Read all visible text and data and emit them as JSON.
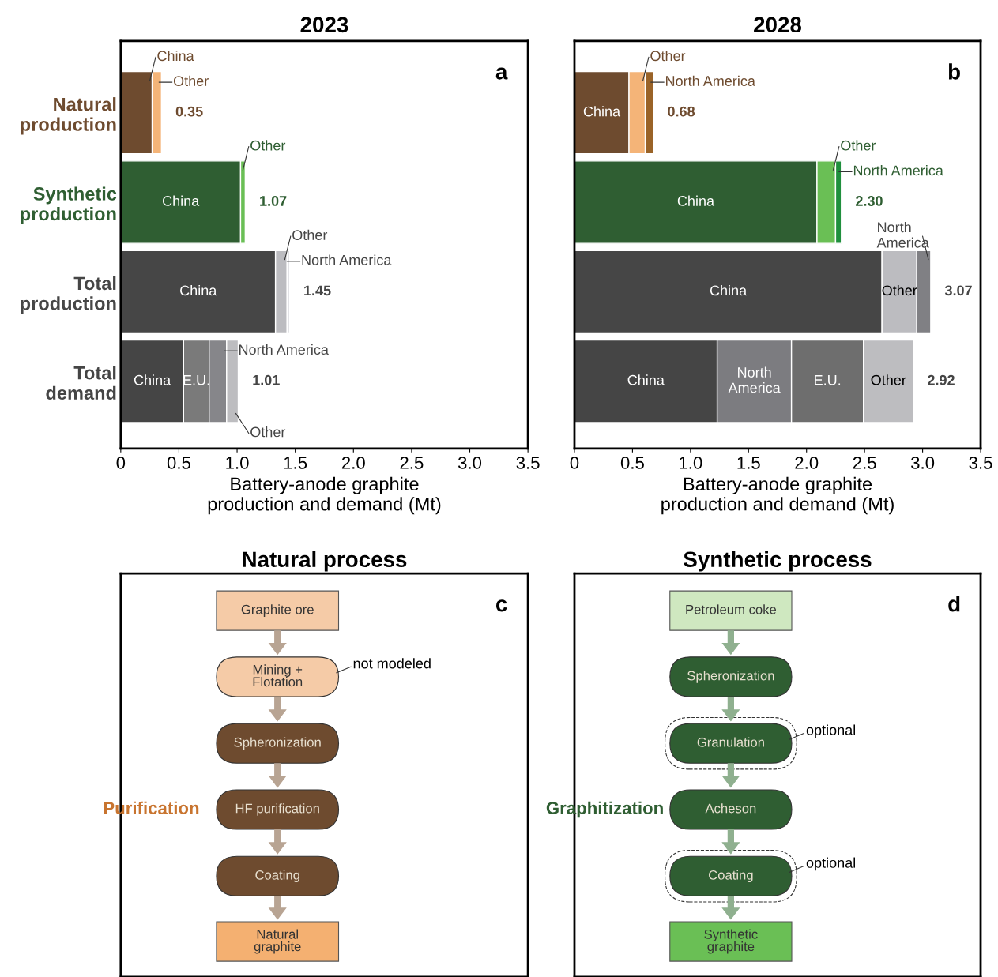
{
  "chart_data": [
    {
      "type": "bar",
      "orientation": "horizontal",
      "stacked": true,
      "title": "2023",
      "xlabel": "Battery-anode graphite\nproduction and demand (Mt)",
      "categories": [
        "Natural\nproduction",
        "Synthetic\nproduction",
        "Total\nproduction",
        "Total\ndemand"
      ],
      "series": [
        {
          "values": [
            0.27,
            1.03,
            1.33,
            0.54
          ],
          "colors": [
            "#6e4b2f",
            "#2f5e32",
            "#464646",
            "#454545"
          ]
        },
        {
          "values": [
            0.08,
            0.04,
            0.1,
            0.22
          ],
          "colors": [
            "#f4b478",
            "#6abf55",
            "#bcbcc0",
            "#7a7a7a"
          ]
        },
        {
          "values": [
            null,
            null,
            0.02,
            0.15
          ],
          "colors": [
            null,
            null,
            "#d0d0d4",
            "#86868a"
          ]
        },
        {
          "values": [
            null,
            null,
            null,
            0.1
          ],
          "colors": [
            null,
            null,
            null,
            "#bdbdc0"
          ]
        }
      ],
      "totals": [
        "0.35",
        "1.07",
        "1.45",
        "1.01"
      ],
      "xlim": [
        0,
        3.5
      ],
      "xticks": [
        0,
        0.5,
        {
          "value": 1,
          "label": "1.0"
        },
        1.5,
        {
          "value": 2,
          "label": "2.0"
        },
        2.5,
        {
          "value": 3,
          "label": "3.0"
        },
        3.5
      ],
      "grid": false,
      "legend": false,
      "annotations": [
        "a",
        "China",
        "Other",
        "China",
        "Other",
        "China",
        "Other",
        "North America",
        "China",
        "E.U.",
        "North America",
        "Other"
      ]
    },
    {
      "type": "bar",
      "orientation": "horizontal",
      "stacked": true,
      "title": "2028",
      "xlabel": "Battery-anode graphite\nproduction and demand (Mt)",
      "categories": [
        null,
        null,
        null,
        null
      ],
      "series": [
        {
          "values": [
            0.47,
            2.09,
            2.65,
            1.23
          ],
          "colors": [
            "#6e4b2f",
            "#2f5e32",
            "#464646",
            "#454545"
          ]
        },
        {
          "values": [
            0.14,
            0.16,
            0.3,
            0.64
          ],
          "colors": [
            "#f4b478",
            "#6abf55",
            "#bcbcc0",
            "#7c7c80"
          ]
        },
        {
          "values": [
            0.07,
            0.05,
            0.12,
            0.62
          ],
          "colors": [
            "#9a6328",
            "#1f8f3d",
            "#808084",
            "#6e6e6e"
          ]
        },
        {
          "values": [
            null,
            null,
            null,
            0.43
          ],
          "colors": [
            null,
            null,
            null,
            "#bdbdc0"
          ]
        }
      ],
      "totals": [
        "0.68",
        "2.30",
        "3.07",
        "2.92"
      ],
      "xlim": [
        0,
        3.5
      ],
      "xticks": [
        0,
        0.5,
        {
          "value": 1,
          "label": "1.0"
        },
        1.5,
        {
          "value": 2,
          "label": "2.0"
        },
        2.5,
        {
          "value": 3,
          "label": "3.0"
        },
        3.5
      ],
      "grid": false,
      "legend": false,
      "annotations": [
        "b",
        "China",
        "Other",
        "North America",
        "China",
        "Other",
        "North America",
        "China",
        "Other",
        "North\nAmerica",
        "China",
        "North\nAmerica",
        "E.U.",
        "Other"
      ]
    },
    {
      "type": "other",
      "title": "Natural process",
      "annotations": [
        "c",
        "Graphite ore",
        "Mining +\nFlotation",
        "Spheronization",
        "HF purification",
        "Coating",
        "Natural\ngraphite",
        "not modeled",
        "Purification"
      ]
    },
    {
      "type": "other",
      "title": "Synthetic process",
      "annotations": [
        "d",
        "Petroleum coke",
        "Spheronization",
        "Granulation",
        "Acheson",
        "Coating",
        "Synthetic\ngraphite",
        "optional",
        "optional",
        "Graphitization"
      ]
    }
  ]
}
